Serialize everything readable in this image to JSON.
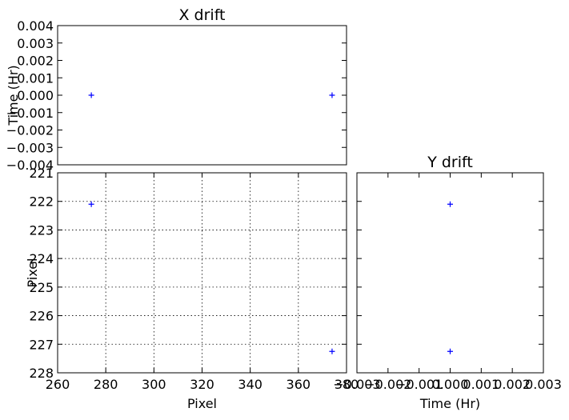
{
  "chart_data": [
    {
      "id": "xdrift",
      "type": "scatter",
      "title": "X drift",
      "xlabel": "",
      "ylabel": "Time (Hr)",
      "xlim": [
        260,
        380
      ],
      "ylim": [
        -0.004,
        0.004
      ],
      "grid": false,
      "x_ticks": [],
      "y_ticks": [
        {
          "v": 0.004,
          "label": "0.004"
        },
        {
          "v": 0.003,
          "label": "0.003"
        },
        {
          "v": 0.002,
          "label": "0.002"
        },
        {
          "v": 0.001,
          "label": "0.001"
        },
        {
          "v": 0.0,
          "label": "0.000"
        },
        {
          "v": -0.001,
          "label": "−0.001"
        },
        {
          "v": -0.002,
          "label": "−0.002"
        },
        {
          "v": -0.003,
          "label": "−0.003"
        },
        {
          "v": -0.004,
          "label": "−0.004"
        }
      ],
      "points": [
        {
          "x": 274,
          "y": 0.0
        },
        {
          "x": 374,
          "y": 0.0
        }
      ],
      "marker_color": "#0000ff"
    },
    {
      "id": "main",
      "type": "scatter",
      "title": "",
      "xlabel": "Pixel",
      "ylabel": "Pixel",
      "xlim": [
        260,
        380
      ],
      "ylim": [
        228,
        221
      ],
      "grid": true,
      "x_ticks": [
        {
          "v": 260,
          "label": "260"
        },
        {
          "v": 280,
          "label": "280"
        },
        {
          "v": 300,
          "label": "300"
        },
        {
          "v": 320,
          "label": "320"
        },
        {
          "v": 340,
          "label": "340"
        },
        {
          "v": 360,
          "label": "360"
        },
        {
          "v": 380,
          "label": "380"
        }
      ],
      "y_ticks": [
        {
          "v": 221,
          "label": "221"
        },
        {
          "v": 222,
          "label": "222"
        },
        {
          "v": 223,
          "label": "223"
        },
        {
          "v": 224,
          "label": "224"
        },
        {
          "v": 225,
          "label": "225"
        },
        {
          "v": 226,
          "label": "226"
        },
        {
          "v": 227,
          "label": "227"
        },
        {
          "v": 228,
          "label": "228"
        }
      ],
      "points": [
        {
          "x": 274,
          "y": 222.1
        },
        {
          "x": 374,
          "y": 227.25
        }
      ],
      "marker_color": "#0000ff"
    },
    {
      "id": "ydrift",
      "type": "scatter",
      "title": "Y drift",
      "xlabel": "Time (Hr)",
      "ylabel": "",
      "xlim": [
        -0.003,
        0.003
      ],
      "ylim": [
        228,
        221
      ],
      "grid": false,
      "x_ticks": [
        {
          "v": -0.003,
          "label": "−0.003"
        },
        {
          "v": -0.002,
          "label": "−0.002"
        },
        {
          "v": -0.001,
          "label": "−0.001"
        },
        {
          "v": 0.0,
          "label": "0.000"
        },
        {
          "v": 0.001,
          "label": "0.001"
        },
        {
          "v": 0.002,
          "label": "0.002"
        },
        {
          "v": 0.003,
          "label": "0.003"
        }
      ],
      "y_ticks": [
        {
          "v": 221,
          "label": ""
        },
        {
          "v": 222,
          "label": ""
        },
        {
          "v": 223,
          "label": ""
        },
        {
          "v": 224,
          "label": ""
        },
        {
          "v": 225,
          "label": ""
        },
        {
          "v": 226,
          "label": ""
        },
        {
          "v": 227,
          "label": ""
        },
        {
          "v": 228,
          "label": ""
        }
      ],
      "points": [
        {
          "x": 0.0,
          "y": 222.1
        },
        {
          "x": 0.0,
          "y": 227.25
        }
      ],
      "marker_color": "#0000ff"
    }
  ]
}
